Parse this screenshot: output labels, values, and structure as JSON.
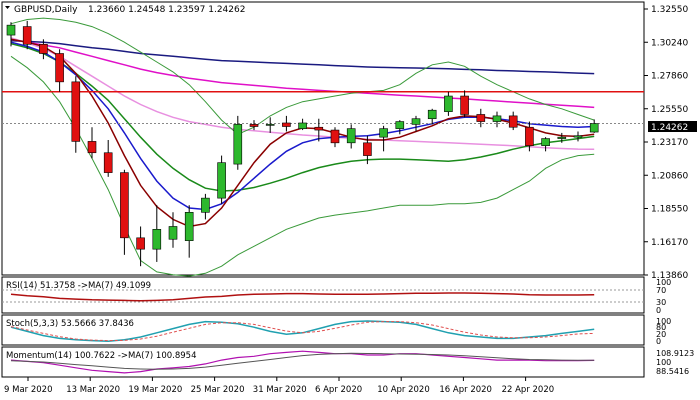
{
  "colors": {
    "bull": "#2db82d",
    "bear": "#e01010",
    "sma_blue": "#1a1acc",
    "ma_pink": "#e010c8",
    "ma_lightpink": "#e890e0",
    "ma_navy": "#1a1a80",
    "ma_red": "#8a0000",
    "ma_green": "#1a8a1a",
    "boll": "#3a9a3a",
    "hline_red": "#e01010",
    "rsi_line": "#b01010",
    "stoch_main": "#20a0b0",
    "stoch_signal": "#e05050",
    "momentum": "#b010b0"
  },
  "main": {
    "title": "GBPUSD,Daily",
    "ohlc": "1.23660 1.24548 1.23597 1.24262",
    "current_price_label": "1.24262",
    "axis_labels": [
      "1.32550",
      "1.30240",
      "1.27860",
      "1.25550",
      "1.23170",
      "1.20860",
      "1.18550",
      "1.16170",
      "1.13860"
    ]
  },
  "rsi": {
    "label": "RSI(14) 51.3758 ->MA(7) 49.1099",
    "axis_labels": [
      "100",
      "70",
      "30",
      "0"
    ]
  },
  "stoch": {
    "label": "Stoch(5,3,3) 53.5666 37.8436",
    "axis_labels": [
      "100",
      "80",
      "20",
      "0"
    ]
  },
  "momentum": {
    "label": "Momentum(14) 100.7622 ->MA(7) 100.8954",
    "axis_labels": [
      "108.9123",
      "100",
      "88.5416"
    ]
  },
  "x_axis": {
    "labels": [
      "9 Mar 2020",
      "13 Mar 2020",
      "19 Mar 2020",
      "25 Mar 2020",
      "31 Mar 2020",
      "6 Apr 2020",
      "10 Apr 2020",
      "16 Apr 2020",
      "22 Apr 2020"
    ]
  },
  "chart_data": {
    "type": "candlestick",
    "symbol": "GBPUSD",
    "timeframe": "Daily",
    "ylim": [
      1.1386,
      1.3255
    ],
    "candles": [
      {
        "o": 1.305,
        "h": 1.314,
        "l": 1.297,
        "c": 1.312
      },
      {
        "o": 1.311,
        "h": 1.315,
        "l": 1.295,
        "c": 1.2985
      },
      {
        "o": 1.2985,
        "h": 1.302,
        "l": 1.288,
        "c": 1.292
      },
      {
        "o": 1.292,
        "h": 1.295,
        "l": 1.265,
        "c": 1.272
      },
      {
        "o": 1.272,
        "h": 1.276,
        "l": 1.222,
        "c": 1.23
      },
      {
        "o": 1.23,
        "h": 1.24,
        "l": 1.218,
        "c": 1.222
      },
      {
        "o": 1.222,
        "h": 1.231,
        "l": 1.205,
        "c": 1.208
      },
      {
        "o": 1.208,
        "h": 1.21,
        "l": 1.15,
        "c": 1.162
      },
      {
        "o": 1.162,
        "h": 1.17,
        "l": 1.142,
        "c": 1.154
      },
      {
        "o": 1.154,
        "h": 1.185,
        "l": 1.145,
        "c": 1.168
      },
      {
        "o": 1.161,
        "h": 1.18,
        "l": 1.155,
        "c": 1.17
      },
      {
        "o": 1.16,
        "h": 1.185,
        "l": 1.148,
        "c": 1.18
      },
      {
        "o": 1.18,
        "h": 1.193,
        "l": 1.175,
        "c": 1.19
      },
      {
        "o": 1.19,
        "h": 1.22,
        "l": 1.186,
        "c": 1.215
      },
      {
        "o": 1.214,
        "h": 1.248,
        "l": 1.21,
        "c": 1.242
      },
      {
        "o": 1.242,
        "h": 1.245,
        "l": 1.238,
        "c": 1.2405
      },
      {
        "o": 1.2415,
        "h": 1.247,
        "l": 1.236,
        "c": 1.242
      },
      {
        "o": 1.243,
        "h": 1.248,
        "l": 1.237,
        "c": 1.2405
      },
      {
        "o": 1.239,
        "h": 1.246,
        "l": 1.238,
        "c": 1.243
      },
      {
        "o": 1.24,
        "h": 1.246,
        "l": 1.23,
        "c": 1.238
      },
      {
        "o": 1.238,
        "h": 1.24,
        "l": 1.226,
        "c": 1.229
      },
      {
        "o": 1.229,
        "h": 1.242,
        "l": 1.225,
        "c": 1.239
      },
      {
        "o": 1.229,
        "h": 1.234,
        "l": 1.214,
        "c": 1.22
      },
      {
        "o": 1.233,
        "h": 1.241,
        "l": 1.223,
        "c": 1.239
      },
      {
        "o": 1.239,
        "h": 1.245,
        "l": 1.235,
        "c": 1.244
      },
      {
        "o": 1.242,
        "h": 1.248,
        "l": 1.237,
        "c": 1.246
      },
      {
        "o": 1.246,
        "h": 1.253,
        "l": 1.242,
        "c": 1.252
      },
      {
        "o": 1.251,
        "h": 1.265,
        "l": 1.248,
        "c": 1.262
      },
      {
        "o": 1.262,
        "h": 1.266,
        "l": 1.247,
        "c": 1.249
      },
      {
        "o": 1.249,
        "h": 1.253,
        "l": 1.24,
        "c": 1.244
      },
      {
        "o": 1.244,
        "h": 1.251,
        "l": 1.24,
        "c": 1.248
      },
      {
        "o": 1.248,
        "h": 1.251,
        "l": 1.238,
        "c": 1.24
      },
      {
        "o": 1.24,
        "h": 1.244,
        "l": 1.223,
        "c": 1.227
      },
      {
        "o": 1.227,
        "h": 1.233,
        "l": 1.223,
        "c": 1.232
      },
      {
        "o": 1.232,
        "h": 1.236,
        "l": 1.229,
        "c": 1.233
      },
      {
        "o": 1.233,
        "h": 1.237,
        "l": 1.23,
        "c": 1.234
      },
      {
        "o": 1.2366,
        "h": 1.2455,
        "l": 1.236,
        "c": 1.2426
      }
    ],
    "horizontal_line": 1.265,
    "overlays": [
      {
        "color_key": "ma_navy",
        "values": [
          1.301,
          1.3005,
          1.3,
          1.299,
          1.2975,
          1.296,
          1.295,
          1.2935,
          1.292,
          1.291,
          1.29,
          1.289,
          1.288,
          1.287,
          1.2865,
          1.286,
          1.2855,
          1.285,
          1.2845,
          1.284,
          1.2835,
          1.283,
          1.2825,
          1.2822,
          1.282,
          1.2818,
          1.2815,
          1.2812,
          1.2808,
          1.2805,
          1.28,
          1.2797,
          1.2793,
          1.279,
          1.2786,
          1.2782,
          1.2778
        ]
      },
      {
        "color_key": "ma_pink",
        "values": [
          1.302,
          1.3,
          1.298,
          1.296,
          1.293,
          1.29,
          1.287,
          1.284,
          1.281,
          1.2785,
          1.2765,
          1.2745,
          1.273,
          1.2715,
          1.2705,
          1.2695,
          1.2685,
          1.2675,
          1.2668,
          1.266,
          1.2653,
          1.2646,
          1.264,
          1.2633,
          1.2626,
          1.262,
          1.2613,
          1.2606,
          1.26,
          1.2592,
          1.2585,
          1.2577,
          1.257,
          1.2562,
          1.2555,
          1.2548,
          1.254
        ]
      },
      {
        "color_key": "ma_lightpink",
        "values": [
          1.303,
          1.2995,
          1.2955,
          1.29,
          1.283,
          1.276,
          1.269,
          1.262,
          1.256,
          1.251,
          1.247,
          1.244,
          1.242,
          1.24,
          1.2385,
          1.2375,
          1.2365,
          1.2355,
          1.2345,
          1.2338,
          1.233,
          1.2322,
          1.2315,
          1.231,
          1.2305,
          1.23,
          1.2295,
          1.229,
          1.2285,
          1.228,
          1.2275,
          1.227,
          1.2262,
          1.2255,
          1.225,
          1.2246,
          1.2244
        ]
      },
      {
        "color_key": "ma_green",
        "values": [
          1.299,
          1.296,
          1.292,
          1.286,
          1.278,
          1.269,
          1.259,
          1.246,
          1.233,
          1.221,
          1.211,
          1.203,
          1.197,
          1.195,
          1.1955,
          1.1975,
          1.2005,
          1.204,
          1.208,
          1.2115,
          1.214,
          1.216,
          1.217,
          1.2175,
          1.2175,
          1.217,
          1.2165,
          1.216,
          1.217,
          1.219,
          1.2215,
          1.2245,
          1.227,
          1.229,
          1.2305,
          1.232,
          1.2335
        ]
      },
      {
        "color_key": "sma_blue",
        "values": [
          1.3,
          1.297,
          1.293,
          1.286,
          1.277,
          1.266,
          1.253,
          1.236,
          1.218,
          1.202,
          1.19,
          1.183,
          1.182,
          1.186,
          1.194,
          1.204,
          1.214,
          1.223,
          1.229,
          1.232,
          1.233,
          1.2335,
          1.234,
          1.2355,
          1.2375,
          1.24,
          1.2425,
          1.2455,
          1.247,
          1.247,
          1.246,
          1.2445,
          1.2425,
          1.2415,
          1.2405,
          1.24,
          1.2405
        ]
      },
      {
        "color_key": "ma_red",
        "values": [
          1.302,
          1.3,
          1.297,
          1.29,
          1.278,
          1.262,
          1.243,
          1.22,
          1.199,
          1.184,
          1.175,
          1.17,
          1.172,
          1.183,
          1.199,
          1.215,
          1.228,
          1.236,
          1.2395,
          1.239,
          1.236,
          1.233,
          1.231,
          1.231,
          1.233,
          1.237,
          1.241,
          1.246,
          1.248,
          1.2475,
          1.2455,
          1.243,
          1.2395,
          1.236,
          1.234,
          1.2335,
          1.235
        ]
      },
      {
        "color_key": "boll",
        "values": [
          1.313,
          1.316,
          1.317,
          1.316,
          1.314,
          1.311,
          1.306,
          1.3,
          1.293,
          1.286,
          1.279,
          1.27,
          1.258,
          1.245,
          1.235,
          1.24,
          1.248,
          1.254,
          1.258,
          1.26,
          1.262,
          1.264,
          1.265,
          1.266,
          1.27,
          1.278,
          1.284,
          1.286,
          1.283,
          1.276,
          1.27,
          1.265,
          1.26,
          1.256,
          1.253,
          1.249,
          1.245
        ]
      },
      {
        "color_key": "boll",
        "values": [
          1.29,
          1.282,
          1.272,
          1.258,
          1.239,
          1.218,
          1.196,
          1.17,
          1.146,
          1.138,
          1.136,
          1.135,
          1.137,
          1.142,
          1.15,
          1.156,
          1.162,
          1.168,
          1.172,
          1.176,
          1.178,
          1.1795,
          1.181,
          1.183,
          1.185,
          1.185,
          1.185,
          1.186,
          1.186,
          1.187,
          1.19,
          1.196,
          1.202,
          1.211,
          1.217,
          1.22,
          1.221
        ]
      }
    ]
  }
}
